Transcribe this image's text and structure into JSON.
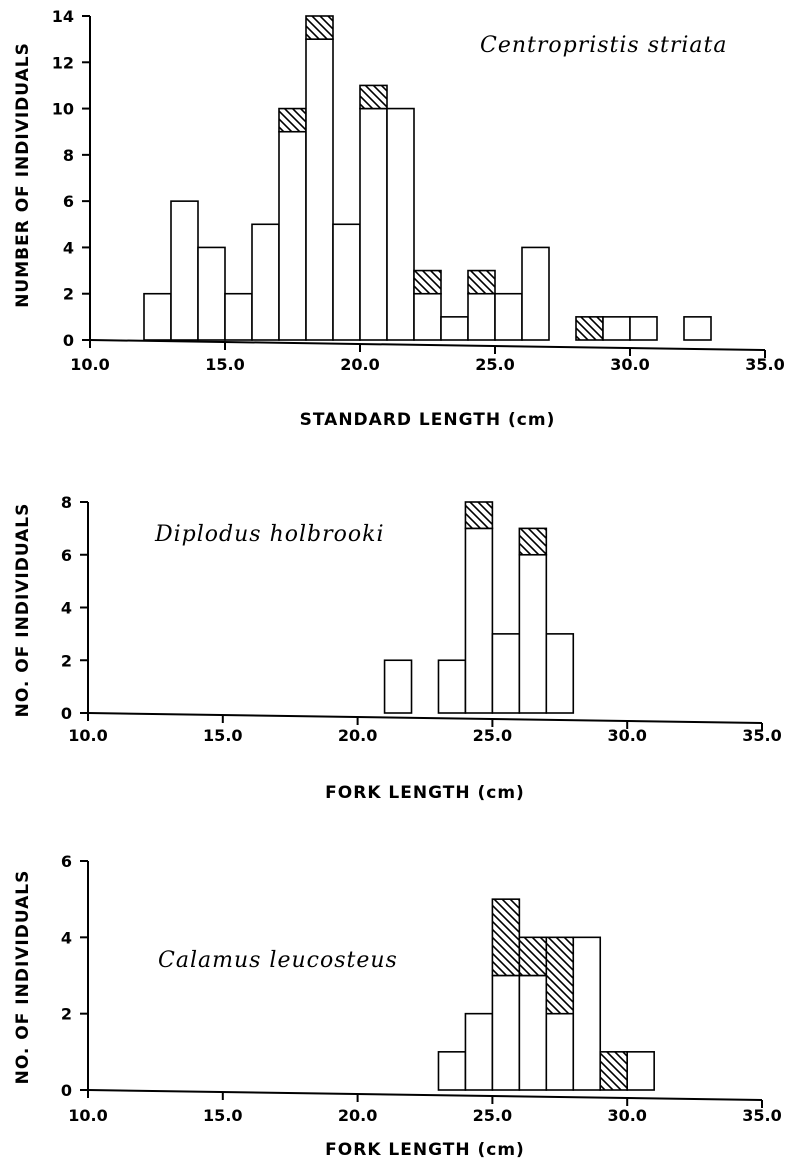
{
  "chart_data": [
    {
      "type": "bar",
      "title": "Centropristis striata",
      "xlabel": "STANDARD LENGTH (cm)",
      "ylabel": "NUMBER OF INDIVIDUALS",
      "xlim": [
        10,
        35
      ],
      "ylim": [
        0,
        14
      ],
      "xticks": [
        "10.0",
        "15.0",
        "20.0",
        "25.0",
        "30.0",
        "35.0"
      ],
      "yticks": [
        "0",
        "2",
        "4",
        "6",
        "8",
        "10",
        "12",
        "14"
      ],
      "bin_width": 1,
      "bins": [
        {
          "start": 12,
          "open": 2,
          "hatched": 0
        },
        {
          "start": 13,
          "open": 6,
          "hatched": 0
        },
        {
          "start": 14,
          "open": 4,
          "hatched": 0
        },
        {
          "start": 15,
          "open": 2,
          "hatched": 0
        },
        {
          "start": 16,
          "open": 5,
          "hatched": 0
        },
        {
          "start": 17,
          "open": 9,
          "hatched": 1
        },
        {
          "start": 18,
          "open": 13,
          "hatched": 1
        },
        {
          "start": 19,
          "open": 5,
          "hatched": 0
        },
        {
          "start": 20,
          "open": 10,
          "hatched": 1
        },
        {
          "start": 21,
          "open": 10,
          "hatched": 0
        },
        {
          "start": 22,
          "open": 2,
          "hatched": 1
        },
        {
          "start": 23,
          "open": 1,
          "hatched": 0
        },
        {
          "start": 24,
          "open": 2,
          "hatched": 1
        },
        {
          "start": 25,
          "open": 2,
          "hatched": 0
        },
        {
          "start": 26,
          "open": 4,
          "hatched": 0
        },
        {
          "start": 28,
          "open": 0,
          "hatched": 1
        },
        {
          "start": 29,
          "open": 1,
          "hatched": 0
        },
        {
          "start": 30,
          "open": 1,
          "hatched": 0
        },
        {
          "start": 32,
          "open": 1,
          "hatched": 0
        }
      ]
    },
    {
      "type": "bar",
      "title": "Diplodus holbrooki",
      "xlabel": "FORK LENGTH (cm)",
      "ylabel": "NO. OF INDIVIDUALS",
      "xlim": [
        10,
        35
      ],
      "ylim": [
        0,
        8
      ],
      "xticks": [
        "10.0",
        "15.0",
        "20.0",
        "25.0",
        "30.0",
        "35.0"
      ],
      "yticks": [
        "0",
        "2",
        "4",
        "6",
        "8"
      ],
      "bin_width": 1,
      "bins": [
        {
          "start": 21,
          "open": 2,
          "hatched": 0
        },
        {
          "start": 23,
          "open": 2,
          "hatched": 0
        },
        {
          "start": 24,
          "open": 7,
          "hatched": 1
        },
        {
          "start": 25,
          "open": 3,
          "hatched": 0
        },
        {
          "start": 26,
          "open": 6,
          "hatched": 1
        },
        {
          "start": 27,
          "open": 3,
          "hatched": 0
        }
      ]
    },
    {
      "type": "bar",
      "title": "Calamus leucosteus",
      "xlabel": "FORK LENGTH (cm)",
      "ylabel": "NO. OF INDIVIDUALS",
      "xlim": [
        10,
        35
      ],
      "ylim": [
        0,
        6
      ],
      "xticks": [
        "10.0",
        "15.0",
        "20.0",
        "25.0",
        "30.0",
        "35.0"
      ],
      "yticks": [
        "0",
        "2",
        "4",
        "6"
      ],
      "bin_width": 1,
      "bins": [
        {
          "start": 23,
          "open": 1,
          "hatched": 0
        },
        {
          "start": 24,
          "open": 2,
          "hatched": 0
        },
        {
          "start": 25,
          "open": 3,
          "hatched": 2
        },
        {
          "start": 26,
          "open": 3,
          "hatched": 1
        },
        {
          "start": 27,
          "open": 2,
          "hatched": 2
        },
        {
          "start": 28,
          "open": 4,
          "hatched": 0
        },
        {
          "start": 29,
          "open": 0,
          "hatched": 1
        },
        {
          "start": 30,
          "open": 1,
          "hatched": 0
        }
      ]
    }
  ]
}
